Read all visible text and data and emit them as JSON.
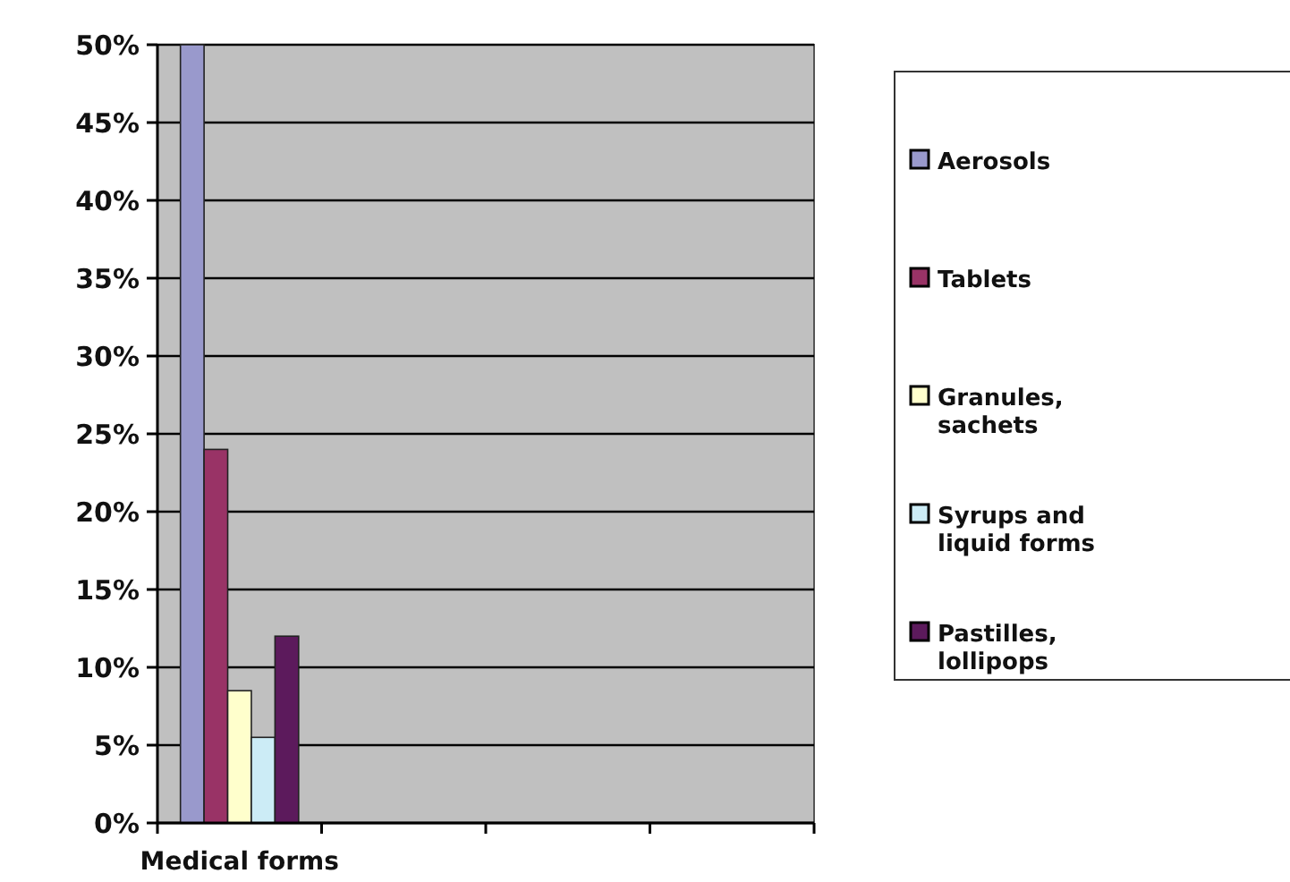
{
  "chart_data": {
    "type": "bar",
    "categories": [
      "Medical forms",
      null,
      null,
      null
    ],
    "series": [
      {
        "name": "Aerosols",
        "color": "#9999cc",
        "values": [
          50,
          null,
          null,
          null
        ]
      },
      {
        "name": "Tablets",
        "color": "#993366",
        "values": [
          24,
          null,
          null,
          null
        ]
      },
      {
        "name": "Granules, sachets",
        "color": "#ffffcc",
        "values": [
          8.5,
          null,
          null,
          null
        ]
      },
      {
        "name": "Syrups and liquid forms",
        "color": "#ccecf6",
        "values": [
          5.5,
          null,
          null,
          null
        ]
      },
      {
        "name": "Pastilles, lollipops",
        "color": "#5c1a5c",
        "values": [
          12,
          null,
          null,
          null
        ]
      }
    ],
    "ylim": [
      0,
      50
    ],
    "yticks": [
      {
        "value": 0,
        "label": "0%"
      },
      {
        "value": 5,
        "label": "5%"
      },
      {
        "value": 10,
        "label": "10%"
      },
      {
        "value": 15,
        "label": "15%"
      },
      {
        "value": 20,
        "label": "20%"
      },
      {
        "value": 25,
        "label": "25%"
      },
      {
        "value": 30,
        "label": "30%"
      },
      {
        "value": 35,
        "label": "35%"
      },
      {
        "value": 40,
        "label": "40%"
      },
      {
        "value": 45,
        "label": "45%"
      },
      {
        "value": 50,
        "label": "50%"
      }
    ],
    "grid": "y",
    "legend": "right"
  }
}
